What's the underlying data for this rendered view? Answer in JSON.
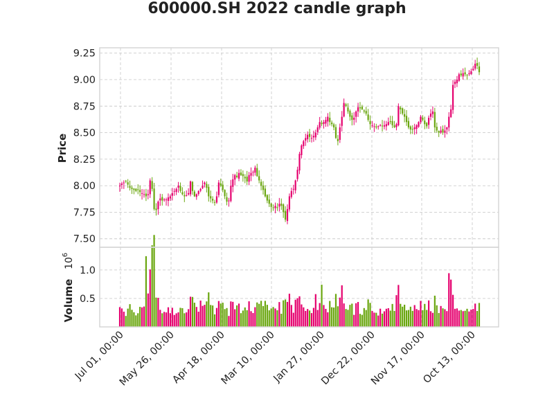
{
  "chart_data": {
    "type": "candlestick",
    "title": "600000.SH 2022 candle graph",
    "ylabel": "Price",
    "volume_label": "Volume",
    "volume_scale_label": "10",
    "volume_scale_exp": "6",
    "grid": true,
    "colors": {
      "up": "#e5006e",
      "down": "#6aa60f",
      "grid": "#cccccc",
      "frame": "#d6d6d6",
      "text": "#222222"
    },
    "ylim": [
      7.42,
      9.3
    ],
    "yticks": [
      7.5,
      7.75,
      8.0,
      8.25,
      8.5,
      8.75,
      9.0,
      9.25
    ],
    "ytick_labels": [
      "7.50",
      "7.75",
      "8.00",
      "8.25",
      "8.50",
      "8.75",
      "9.00",
      "9.25"
    ],
    "volume_ylim": [
      0,
      1.4
    ],
    "volume_yticks": [
      0.5,
      1.0
    ],
    "volume_ytick_labels": [
      "0.5",
      "1.0"
    ],
    "xtick_labels": [
      "Jul 01, 00:00",
      "May 26, 00:00",
      "Apr 18, 00:00",
      "Mar 10, 00:00",
      "Jan 27, 00:00",
      "Dec 22, 00:00",
      "Nov 17, 00:00",
      "Oct 13, 00:00"
    ],
    "close": [
      8.0,
      8.02,
      8.03,
      8.04,
      8.01,
      7.98,
      7.97,
      7.96,
      7.95,
      7.96,
      7.94,
      7.93,
      7.92,
      7.9,
      7.92,
      8.05,
      7.97,
      7.78,
      7.77,
      7.85,
      7.88,
      7.86,
      7.87,
      7.87,
      7.89,
      7.9,
      7.93,
      7.95,
      7.97,
      8.0,
      7.95,
      7.92,
      7.9,
      7.91,
      7.93,
      8.04,
      7.95,
      7.9,
      7.92,
      7.95,
      7.97,
      8.0,
      8.03,
      7.98,
      7.9,
      7.88,
      7.86,
      7.84,
      7.9,
      8.03,
      8.0,
      7.96,
      7.9,
      7.85,
      7.86,
      8.0,
      8.06,
      8.1,
      8.08,
      8.12,
      8.1,
      8.09,
      8.07,
      8.04,
      8.1,
      8.12,
      8.13,
      8.17,
      8.09,
      8.05,
      8.0,
      7.96,
      7.9,
      7.86,
      7.83,
      7.8,
      7.79,
      7.81,
      7.79,
      7.83,
      7.81,
      7.75,
      7.68,
      7.78,
      7.9,
      7.95,
      7.97,
      8.05,
      8.15,
      8.3,
      8.38,
      8.42,
      8.45,
      8.48,
      8.46,
      8.45,
      8.47,
      8.5,
      8.55,
      8.6,
      8.58,
      8.6,
      8.62,
      8.65,
      8.6,
      8.58,
      8.55,
      8.45,
      8.42,
      8.55,
      8.65,
      8.78,
      8.75,
      8.7,
      8.65,
      8.62,
      8.64,
      8.7,
      8.74,
      8.73,
      8.72,
      8.7,
      8.68,
      8.62,
      8.58,
      8.57,
      8.56,
      8.55,
      8.56,
      8.57,
      8.56,
      8.57,
      8.58,
      8.6,
      8.6,
      8.57,
      8.55,
      8.58,
      8.75,
      8.72,
      8.68,
      8.65,
      8.6,
      8.55,
      8.53,
      8.53,
      8.55,
      8.57,
      8.6,
      8.65,
      8.62,
      8.58,
      8.56,
      8.64,
      8.68,
      8.7,
      8.55,
      8.52,
      8.5,
      8.52,
      8.5,
      8.52,
      8.55,
      8.65,
      8.72,
      8.95,
      8.98,
      9.0,
      9.05,
      9.04,
      9.06,
      9.05,
      9.04,
      9.06,
      9.08,
      9.1,
      9.15,
      9.13,
      9.07
    ]
  }
}
